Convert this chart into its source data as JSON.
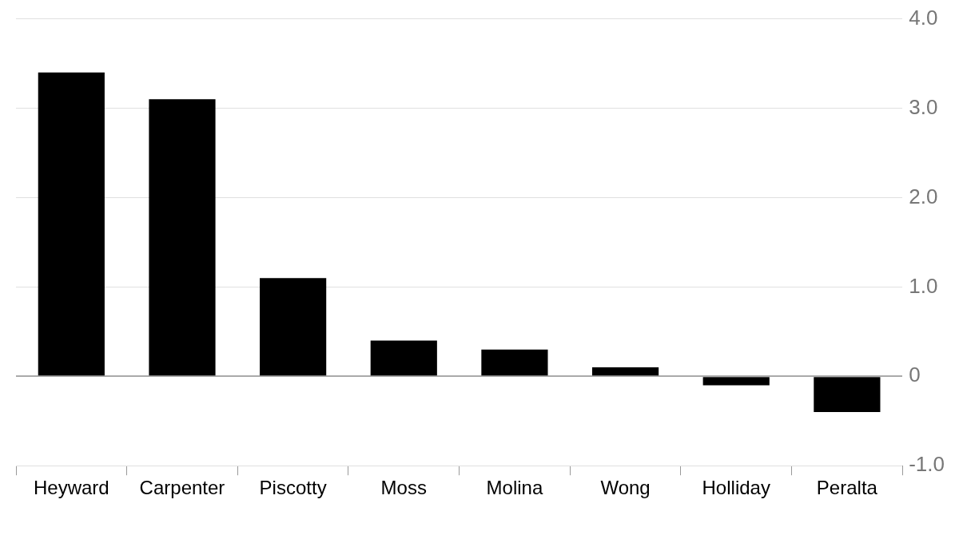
{
  "chart_data": {
    "type": "bar",
    "categories": [
      "Heyward",
      "Carpenter",
      "Piscotty",
      "Moss",
      "Molina",
      "Wong",
      "Holliday",
      "Peralta"
    ],
    "values": [
      3.4,
      3.1,
      1.1,
      0.4,
      0.3,
      0.1,
      -0.1,
      -0.4
    ],
    "color": "#000000",
    "ylim": [
      -1,
      4
    ],
    "yticks": [
      {
        "value": -1,
        "label": "-1.0"
      },
      0,
      {
        "value": 1,
        "label": "1.0"
      },
      {
        "value": 2,
        "label": "2.0"
      },
      {
        "value": 3,
        "label": "3.0"
      },
      {
        "value": 4,
        "label": "4.0"
      }
    ],
    "grid": "y"
  }
}
